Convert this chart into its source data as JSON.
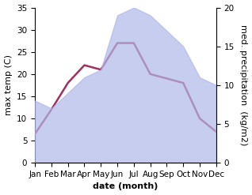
{
  "months": [
    "Jan",
    "Feb",
    "Mar",
    "Apr",
    "May",
    "Jun",
    "Jul",
    "Aug",
    "Sep",
    "Oct",
    "Nov",
    "Dec"
  ],
  "temp_C": [
    6.5,
    12,
    18,
    22,
    21,
    27,
    27,
    20,
    19,
    18,
    10,
    7
  ],
  "precip_mm": [
    8,
    7,
    9,
    11,
    12,
    19,
    20,
    19,
    17,
    15,
    11,
    10
  ],
  "temp_color": "#a03060",
  "precip_fill_color": "#b0b8e8",
  "temp_ylim": [
    0,
    35
  ],
  "precip_ylim": [
    0,
    20
  ],
  "temp_yticks": [
    0,
    5,
    10,
    15,
    20,
    25,
    30,
    35
  ],
  "precip_yticks": [
    0,
    5,
    10,
    15,
    20
  ],
  "xlabel": "date (month)",
  "ylabel_left": "max temp (C)",
  "ylabel_right": "med. precipitation  (kg/m2)",
  "label_fontsize": 8,
  "tick_fontsize": 7.5,
  "bg_color": "#ffffff"
}
